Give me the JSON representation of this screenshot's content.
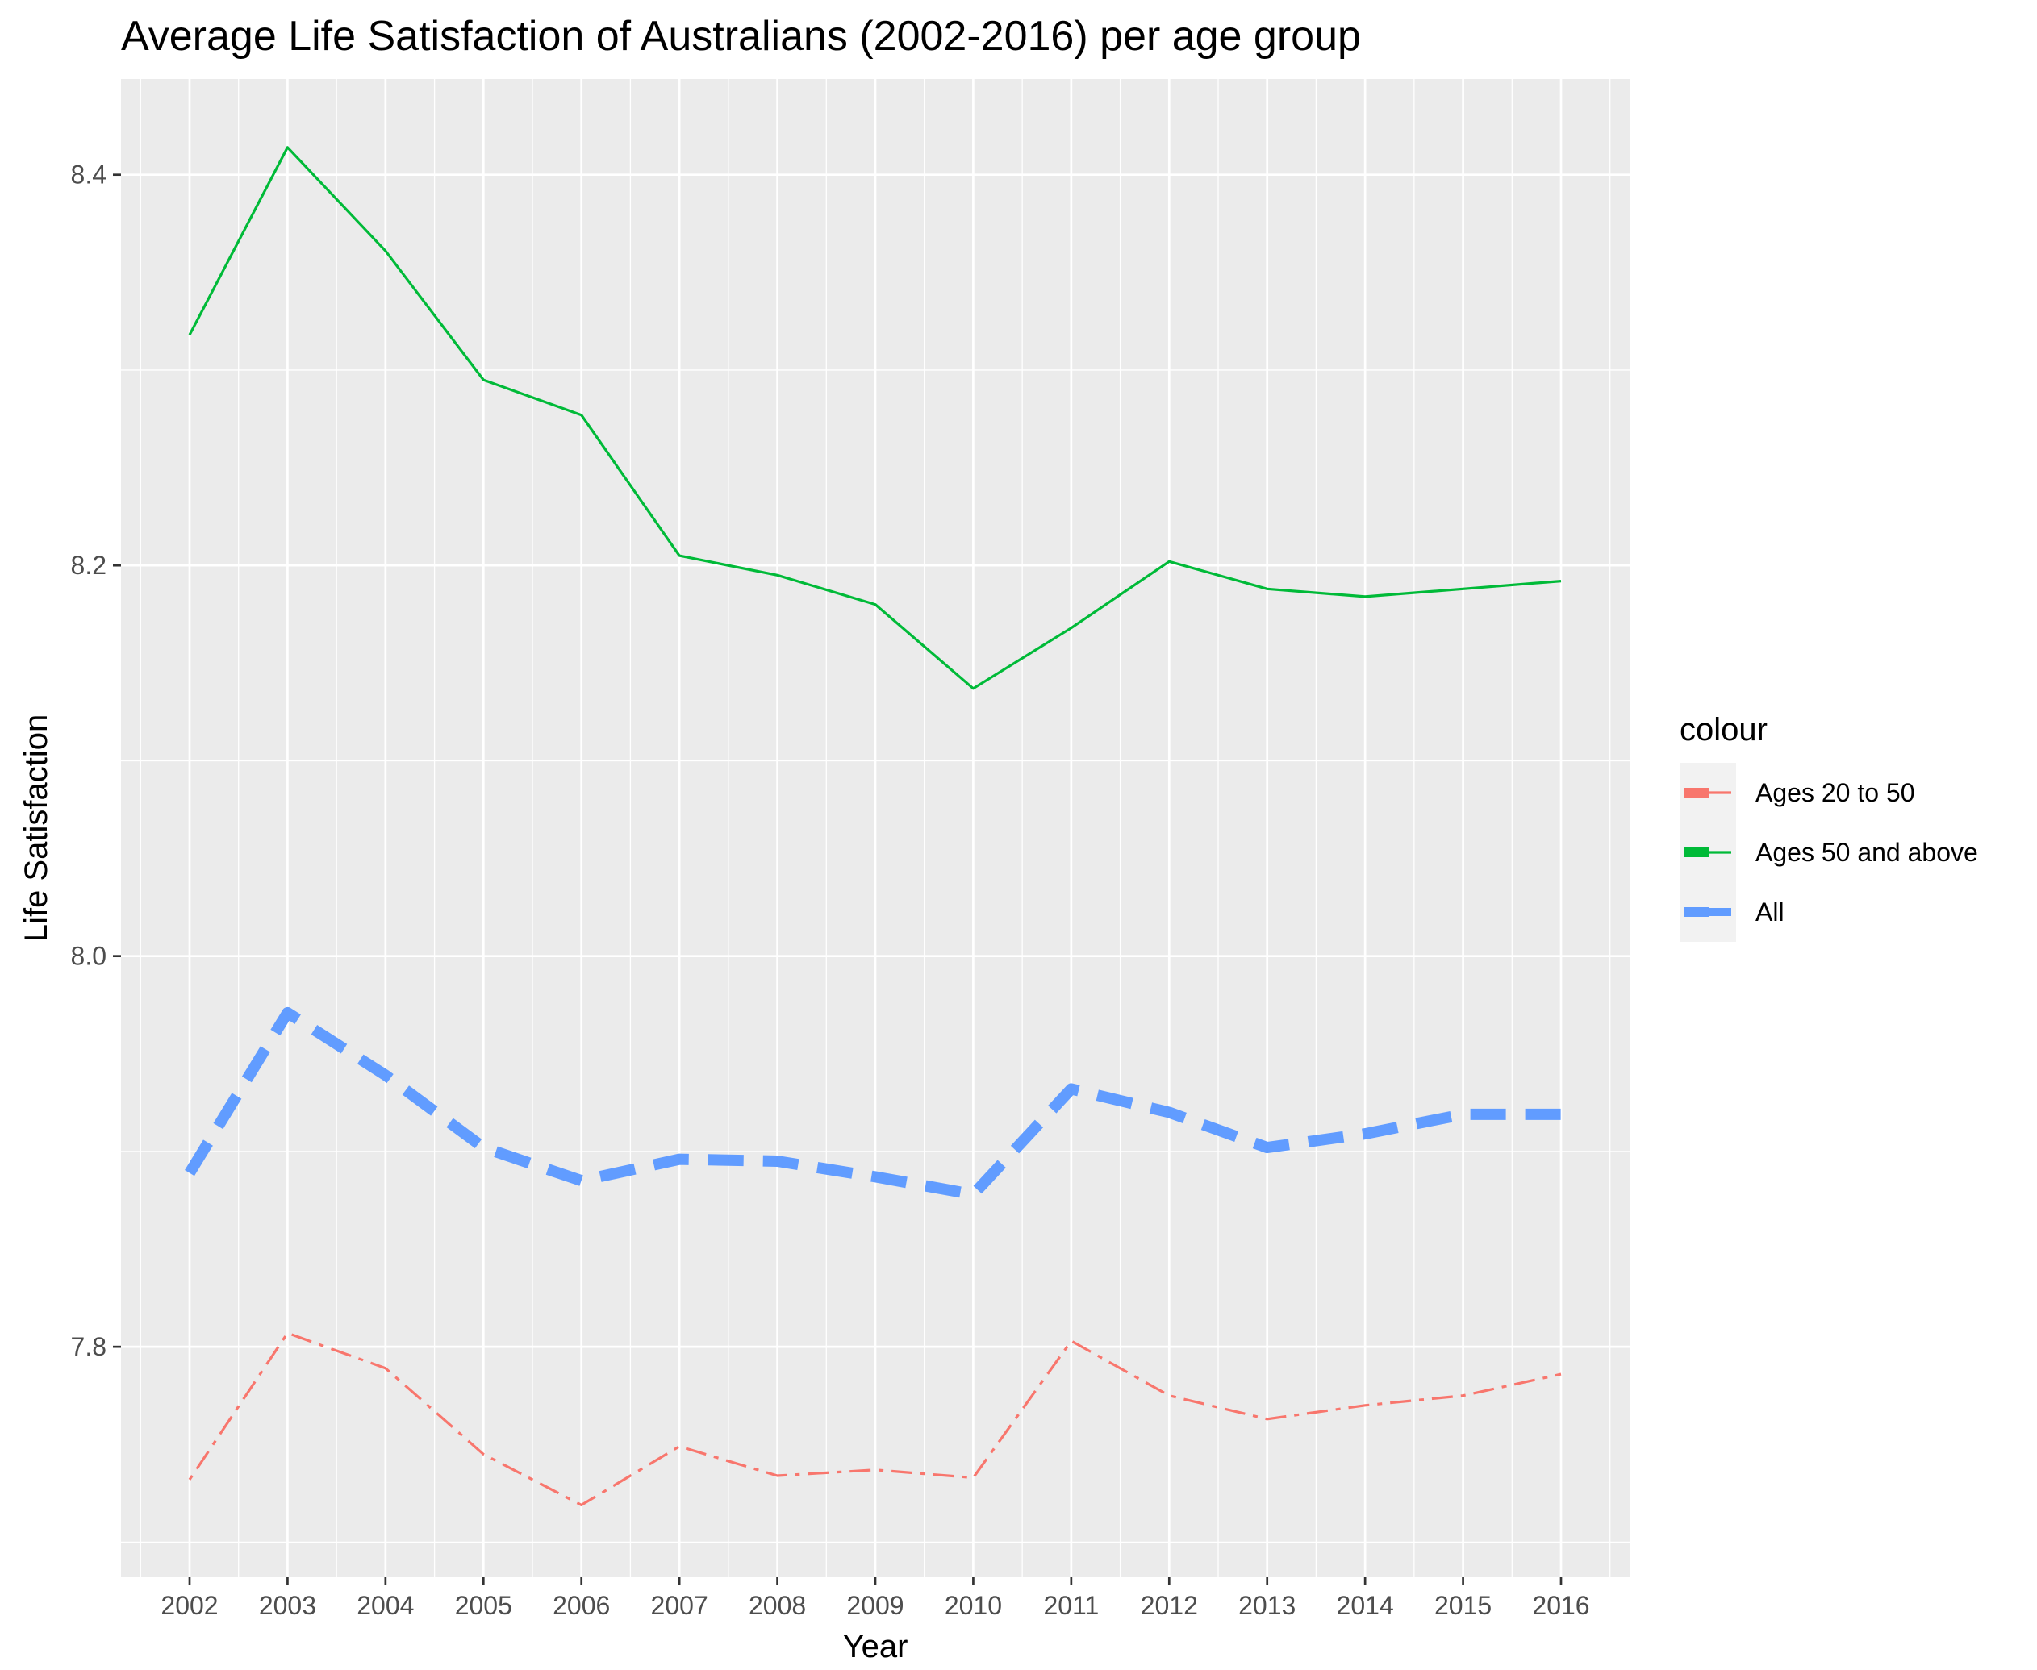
{
  "chart_data": {
    "type": "line",
    "title": "Average Life Satisfaction of Australians (2002-2016) per age group",
    "xlabel": "Year",
    "ylabel": "Life Satisfaction",
    "x": [
      2002,
      2003,
      2004,
      2005,
      2006,
      2007,
      2008,
      2009,
      2010,
      2011,
      2012,
      2013,
      2014,
      2015,
      2016
    ],
    "xlim": [
      2001.3,
      2016.7
    ],
    "ylim": [
      7.682,
      8.449
    ],
    "yticks": [
      7.8,
      8.0,
      8.2,
      8.4
    ],
    "ytick_labels": [
      "7.8",
      "8.0",
      "8.2",
      "8.4"
    ],
    "grid": true,
    "legend": {
      "title": "colour",
      "position": "right"
    },
    "series": [
      {
        "name": "Ages 20 to 50",
        "color": "#F8766D",
        "linestyle": "dotdash",
        "values": [
          7.732,
          7.807,
          7.789,
          7.745,
          7.719,
          7.749,
          7.734,
          7.737,
          7.733,
          7.803,
          7.775,
          7.763,
          7.77,
          7.775,
          7.786
        ]
      },
      {
        "name": "Ages 50 and above",
        "color": "#00BA38",
        "linestyle": "solid",
        "values": [
          8.318,
          8.414,
          8.361,
          8.295,
          8.277,
          8.205,
          8.195,
          8.18,
          8.137,
          8.168,
          8.202,
          8.188,
          8.184,
          8.188,
          8.192
        ]
      },
      {
        "name": "All",
        "color": "#619CFF",
        "linestyle": "dashed",
        "thick": true,
        "values": [
          7.889,
          7.971,
          7.939,
          7.902,
          7.885,
          7.896,
          7.895,
          7.887,
          7.878,
          7.932,
          7.92,
          7.902,
          7.909,
          7.919,
          7.919
        ]
      }
    ]
  }
}
